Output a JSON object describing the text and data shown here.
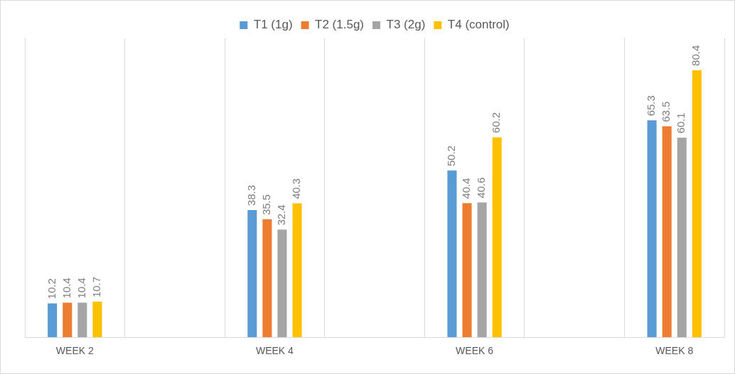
{
  "chart_data": {
    "type": "bar",
    "categories": [
      "WEEK 2",
      null,
      "WEEK 4",
      null,
      "WEEK 6",
      null,
      "WEEK 8"
    ],
    "series": [
      {
        "name": "T1 (1g)",
        "color": "#5b9bd5",
        "values": [
          10.2,
          null,
          38.3,
          null,
          50.2,
          null,
          65.3
        ]
      },
      {
        "name": "T2 (1.5g)",
        "color": "#ed7d31",
        "values": [
          10.4,
          null,
          35.5,
          null,
          40.4,
          null,
          63.5
        ]
      },
      {
        "name": "T3 (2g)",
        "color": "#a5a5a5",
        "values": [
          10.4,
          null,
          32.4,
          null,
          40.6,
          null,
          60.1
        ]
      },
      {
        "name": "T4 (control)",
        "color": "#ffc000",
        "values": [
          10.7,
          null,
          40.3,
          null,
          60.2,
          null,
          80.4
        ]
      }
    ],
    "ylim": [
      0,
      90
    ],
    "grid": "x",
    "legend": "top",
    "data_labels": true,
    "tick_labels": "x"
  }
}
